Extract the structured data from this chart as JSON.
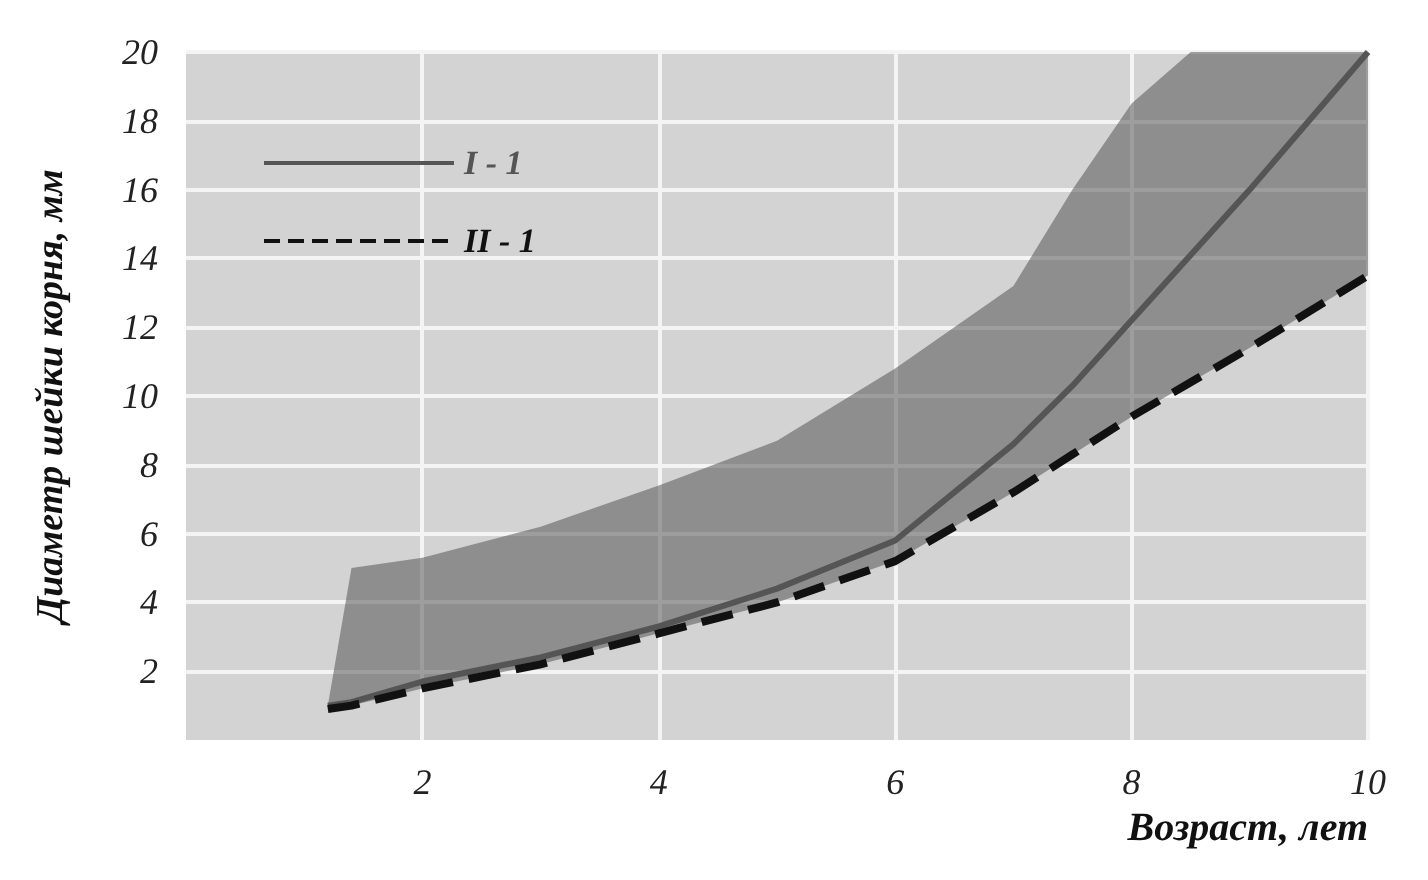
{
  "chart_data": {
    "type": "line",
    "xlabel": "Возраст, лет",
    "ylabel": "Диаметр шейки корня, мм",
    "x": [
      1.2,
      1.4,
      2,
      3,
      4,
      5,
      6,
      7,
      7.5,
      8,
      8.5,
      9,
      10
    ],
    "series": [
      {
        "name": "I - 1",
        "color": "#555555",
        "line_style": "solid",
        "values": [
          1.0,
          1.1,
          1.7,
          2.4,
          3.3,
          4.4,
          5.8,
          8.6,
          10.3,
          12.2,
          14.1,
          16,
          20
        ],
        "lower": [
          0.9,
          1.0,
          1.5,
          2.2,
          3.1,
          4.0,
          5.2,
          7.2,
          8.3,
          9.4,
          10.4,
          11.4,
          13.5
        ],
        "upper": [
          1.0,
          5.0,
          5.3,
          6.2,
          7.4,
          8.7,
          10.8,
          13.2,
          16,
          18.5,
          20,
          20,
          20
        ]
      },
      {
        "name": "II - 1",
        "color": "#111111",
        "line_style": "dashed",
        "values": [
          0.9,
          1.0,
          1.5,
          2.2,
          3.1,
          4.0,
          5.2,
          7.2,
          8.3,
          9.4,
          10.4,
          11.4,
          13.5
        ]
      }
    ],
    "xlim": [
      0,
      10
    ],
    "xticks": [
      2,
      4,
      6,
      8,
      10
    ],
    "ylim": [
      0,
      20
    ],
    "yticks": [
      2,
      4,
      6,
      8,
      10,
      12,
      14,
      16,
      18,
      20
    ],
    "grid": true,
    "legend": "top left",
    "marker": "none"
  }
}
